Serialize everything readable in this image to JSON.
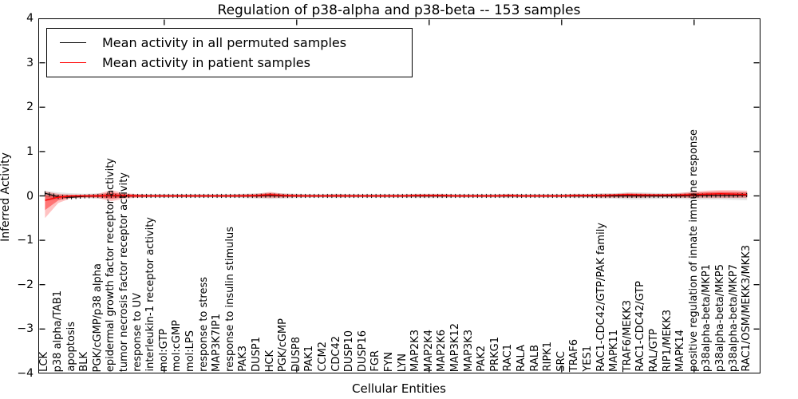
{
  "figure": {
    "title": "Regulation of p38-alpha and p38-beta -- 153 samples",
    "xlabel": "Cellular Entities",
    "ylabel": "Inferred Activity",
    "legend": [
      {
        "label": "Mean activity in all permuted samples",
        "color": "#000000"
      },
      {
        "label": "Mean activity in patient samples",
        "color": "#ff0000"
      }
    ]
  },
  "chart_data": {
    "type": "line",
    "title": "Regulation of p38-alpha and p38-beta -- 153 samples",
    "xlabel": "Cellular Entities",
    "ylabel": "Inferred Activity",
    "ylim": [
      -4,
      4
    ],
    "yticks": [
      4,
      3,
      2,
      1,
      0,
      -1,
      -2,
      -3,
      -4
    ],
    "xtick_positions": [
      9,
      19,
      29,
      39,
      49
    ],
    "grid": false,
    "legend_position": "upper left",
    "categories": [
      "LCK",
      "p38 alpha/TAB1",
      "apoptosis",
      "BLK",
      "PGK/cGMP/p38 alpha",
      "epidermal growth factor receptor activity",
      "tumor necrosis factor receptor activity",
      "response to UV",
      "interleukin-1 receptor activity",
      "mol:GTP",
      "mol:cGMP",
      "mol:LPS",
      "response to stress",
      "MAP3K7IP1",
      "response to insulin stimulus",
      "PAK3",
      "DUSP1",
      "HCK",
      "PGK/cGMP",
      "DUSP8",
      "PAK1",
      "CCM2",
      "CDC42",
      "DUSP10",
      "DUSP16",
      "FGR",
      "FYN",
      "LYN",
      "MAP2K3",
      "MAP2K4",
      "MAP2K6",
      "MAP3K12",
      "MAP3K3",
      "PAK2",
      "PRKG1",
      "RAC1",
      "RALA",
      "RALB",
      "RIPK1",
      "SRC",
      "TRAF6",
      "YES1",
      "RAC1-CDC42/GTP/PAK family",
      "MAPK11",
      "TRAF6/MEKK3",
      "RAC1-CDC42/GTP",
      "RAL/GTP",
      "RIP1/MEKK3",
      "MAPK14",
      "positive regulation of innate immune response",
      "p38alpha-beta/MKP1",
      "p38alpha-beta/MKP5",
      "p38alpha-beta/MKP7",
      "RAC1/OSM/MEKK3/MKK3"
    ],
    "series": [
      {
        "name": "Mean activity in all permuted samples",
        "color": "#000000",
        "values": [
          0.06,
          -0.02,
          -0.03,
          -0.01,
          0,
          0,
          0,
          0,
          0,
          0,
          0,
          0,
          0,
          0,
          0,
          0,
          0,
          0.01,
          0,
          0,
          0,
          0,
          0,
          0,
          0,
          0,
          0,
          0,
          0,
          0,
          0,
          0,
          0,
          0,
          0,
          0,
          0,
          0,
          0,
          0,
          0,
          0,
          0,
          0,
          0,
          0,
          0,
          0,
          0,
          0.01,
          0.01,
          0.01,
          0.01,
          0.02
        ]
      },
      {
        "name": "Mean activity in patient samples",
        "color": "#ff0000",
        "values": [
          -0.1,
          -0.03,
          0,
          0,
          0,
          0.01,
          0.01,
          0,
          0,
          0,
          0,
          0,
          0,
          0,
          0,
          0,
          0.01,
          0.03,
          0.01,
          0,
          0,
          0,
          0,
          0,
          0,
          0,
          0,
          0,
          0.01,
          0.01,
          0.01,
          0,
          0,
          0,
          0,
          0.01,
          0,
          0,
          0,
          0,
          0.01,
          0.01,
          0.01,
          0.02,
          0.03,
          0.02,
          0.02,
          0.02,
          0.02,
          0.03,
          0.04,
          0.05,
          0.04,
          0.03
        ]
      }
    ],
    "bands": [
      {
        "name": "permuted-range",
        "center_series": 0,
        "color": "#000000",
        "alpha": 0.1,
        "inner_alpha": 0.14,
        "inner_scale": 0.5,
        "upper": [
          0.12,
          0.08,
          0.06,
          0.05,
          0.06,
          0.07,
          0.05,
          0.04,
          0.04,
          0.04,
          0.04,
          0.04,
          0.04,
          0.04,
          0.04,
          0.05,
          0.06,
          0.07,
          0.06,
          0.05,
          0.04,
          0.04,
          0.05,
          0.04,
          0.04,
          0.04,
          0.04,
          0.04,
          0.05,
          0.05,
          0.05,
          0.04,
          0.04,
          0.04,
          0.04,
          0.05,
          0.04,
          0.04,
          0.04,
          0.04,
          0.05,
          0.05,
          0.06,
          0.06,
          0.08,
          0.08,
          0.07,
          0.06,
          0.07,
          0.08,
          0.08,
          0.08,
          0.09,
          0.1
        ],
        "lower": [
          -0.12,
          -0.08,
          -0.06,
          -0.05,
          -0.06,
          -0.07,
          -0.05,
          -0.04,
          -0.04,
          -0.04,
          -0.04,
          -0.04,
          -0.04,
          -0.04,
          -0.04,
          -0.05,
          -0.06,
          -0.07,
          -0.06,
          -0.05,
          -0.04,
          -0.04,
          -0.05,
          -0.04,
          -0.04,
          -0.04,
          -0.04,
          -0.04,
          -0.05,
          -0.05,
          -0.05,
          -0.04,
          -0.04,
          -0.04,
          -0.04,
          -0.05,
          -0.04,
          -0.04,
          -0.04,
          -0.04,
          -0.05,
          -0.05,
          -0.06,
          -0.06,
          -0.08,
          -0.08,
          -0.07,
          -0.06,
          -0.07,
          -0.08,
          -0.08,
          -0.08,
          -0.09,
          -0.1
        ]
      },
      {
        "name": "patient-range",
        "center_series": 1,
        "color": "#ff0000",
        "alpha": 0.24,
        "inner_alpha": 0.4,
        "inner_scale": 0.55,
        "upper": [
          0.1,
          0.05,
          0.03,
          0.03,
          0.05,
          0.13,
          0.06,
          0.04,
          0.03,
          0.03,
          0.03,
          0.03,
          0.03,
          0.03,
          0.03,
          0.04,
          0.05,
          0.09,
          0.05,
          0.04,
          0.03,
          0.03,
          0.04,
          0.03,
          0.03,
          0.03,
          0.03,
          0.03,
          0.04,
          0.04,
          0.04,
          0.03,
          0.03,
          0.03,
          0.03,
          0.04,
          0.03,
          0.03,
          0.03,
          0.03,
          0.04,
          0.04,
          0.05,
          0.05,
          0.07,
          0.06,
          0.05,
          0.05,
          0.07,
          0.1,
          0.12,
          0.13,
          0.13,
          0.12
        ],
        "lower": [
          -0.5,
          -0.16,
          -0.05,
          -0.04,
          -0.05,
          -0.12,
          -0.06,
          -0.04,
          -0.03,
          -0.03,
          -0.03,
          -0.03,
          -0.03,
          -0.03,
          -0.03,
          -0.03,
          -0.04,
          -0.05,
          -0.04,
          -0.03,
          -0.03,
          -0.03,
          -0.03,
          -0.03,
          -0.03,
          -0.03,
          -0.03,
          -0.03,
          -0.03,
          -0.03,
          -0.03,
          -0.03,
          -0.03,
          -0.03,
          -0.03,
          -0.03,
          -0.03,
          -0.03,
          -0.03,
          -0.03,
          -0.03,
          -0.03,
          -0.04,
          -0.04,
          -0.04,
          -0.04,
          -0.03,
          -0.03,
          -0.04,
          -0.05,
          -0.05,
          -0.05,
          -0.05,
          -0.05
        ]
      }
    ]
  }
}
